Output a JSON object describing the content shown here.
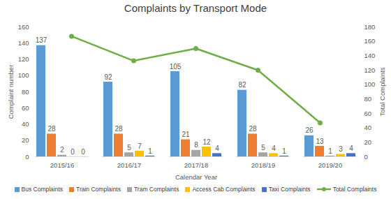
{
  "chart_data": {
    "type": "bar",
    "title": "Complaints by Transport Mode",
    "x_label": "Calendar Year",
    "y_label": "Complaint number",
    "y2_label": "Total Complaints",
    "categories": [
      "2015/16",
      "2016/17",
      "2017/18",
      "2018/19",
      "2019/20"
    ],
    "series": [
      {
        "name": "Bus Complaints",
        "color": "#5b9bd5",
        "type": "bar",
        "data_labels": true,
        "values": [
          137,
          92,
          105,
          82,
          26
        ]
      },
      {
        "name": "Train Complaints",
        "color": "#ed7d31",
        "type": "bar",
        "data_labels": true,
        "values": [
          28,
          28,
          21,
          28,
          13
        ]
      },
      {
        "name": "Tram Complaints",
        "color": "#a5a5a5",
        "type": "bar",
        "data_labels": true,
        "values": [
          2,
          5,
          8,
          5,
          1
        ]
      },
      {
        "name": "Access Cab Complaints",
        "color": "#ffc000",
        "type": "bar",
        "data_labels": true,
        "values": [
          0,
          7,
          12,
          4,
          3
        ]
      },
      {
        "name": "Taxi Complaints",
        "color": "#4472c4",
        "type": "bar",
        "data_labels": true,
        "values": [
          0,
          1,
          4,
          1,
          4
        ]
      },
      {
        "name": "Total Complaints",
        "color": "#70ad47",
        "type": "line",
        "axis": "y2",
        "marker": "circle",
        "data_labels": false,
        "values": [
          167,
          133,
          150,
          120,
          47
        ]
      }
    ],
    "ylim": [
      0,
      160
    ],
    "yticks": [
      0,
      20,
      40,
      60,
      80,
      100,
      120,
      140,
      160
    ],
    "y2lim": [
      0,
      180
    ],
    "y2ticks": [
      0,
      20,
      40,
      60,
      80,
      100,
      120,
      140,
      160,
      180
    ],
    "grid": false,
    "legend": "bottom"
  }
}
